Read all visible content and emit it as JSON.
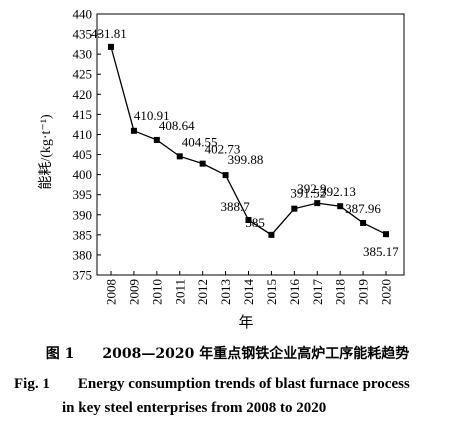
{
  "chart_data": {
    "type": "line",
    "xlabel": "年",
    "ylabel": "能耗/(kg·t⁻¹)",
    "ylim": [
      375,
      440
    ],
    "yticks": [
      375,
      380,
      385,
      390,
      395,
      400,
      405,
      410,
      415,
      420,
      425,
      430,
      435,
      440
    ],
    "categories": [
      "2008",
      "2009",
      "2010",
      "2011",
      "2012",
      "2013",
      "2014",
      "2015",
      "2016",
      "2017",
      "2018",
      "2019",
      "2020"
    ],
    "series": [
      {
        "values": [
          431.81,
          410.91,
          408.64,
          404.55,
          402.73,
          399.88,
          388.7,
          385,
          391.52,
          392.9,
          392.13,
          387.96,
          385.17
        ],
        "labels": [
          "431.81",
          "410.91",
          "408.64",
          "404.55",
          "402.73",
          "399.88",
          "388.7",
          "385",
          "391.52",
          "392.9",
          "392.13",
          "387.96",
          "385.17"
        ],
        "color": "#000000",
        "marker": "square"
      }
    ],
    "grid": false
  },
  "caption": {
    "cn_label": "图 1",
    "cn_text": "2008—2020 年重点钢铁企业高炉工序能耗趋势",
    "en_label": "Fig. 1",
    "en_line1": "Energy consumption trends of blast furnace process",
    "en_line2": "in key steel enterprises from 2008 to 2020"
  }
}
